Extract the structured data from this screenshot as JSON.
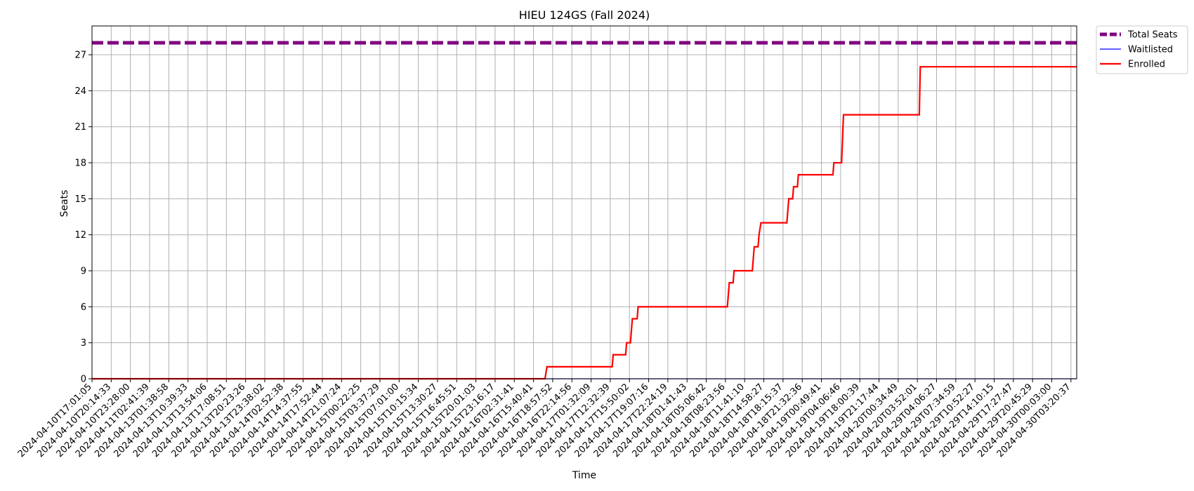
{
  "chart_data": {
    "type": "line",
    "title": "HIEU 124GS (Fall 2024)",
    "xlabel": "Time",
    "ylabel": "Seats",
    "ylim": [
      0,
      29.4
    ],
    "yticks": [
      0,
      3,
      6,
      9,
      12,
      15,
      18,
      21,
      24,
      27
    ],
    "grid": true,
    "legend_position": "outside-top-right",
    "x_tick_labels": [
      "2024-04-10T17:01:05",
      "2024-04-10T20:14:33",
      "2024-04-10T23:28:00",
      "2024-04-11T02:41:39",
      "2024-04-13T01:38:58",
      "2024-04-13T10:39:33",
      "2024-04-13T13:54:06",
      "2024-04-13T17:08:51",
      "2024-04-13T20:23:26",
      "2024-04-13T23:38:02",
      "2024-04-14T02:52:38",
      "2024-04-14T14:37:55",
      "2024-04-14T17:52:44",
      "2024-04-14T21:07:24",
      "2024-04-15T00:22:25",
      "2024-04-15T03:37:29",
      "2024-04-15T07:01:00",
      "2024-04-15T10:15:34",
      "2024-04-15T13:30:27",
      "2024-04-15T16:45:51",
      "2024-04-15T20:01:03",
      "2024-04-15T23:16:17",
      "2024-04-16T02:31:41",
      "2024-04-16T15:40:41",
      "2024-04-16T18:57:52",
      "2024-04-16T22:14:56",
      "2024-04-17T01:32:09",
      "2024-04-17T12:32:39",
      "2024-04-17T15:50:02",
      "2024-04-17T19:07:16",
      "2024-04-17T22:24:19",
      "2024-04-18T01:41:43",
      "2024-04-18T05:06:42",
      "2024-04-18T08:23:56",
      "2024-04-18T11:41:10",
      "2024-04-18T14:58:27",
      "2024-04-18T18:15:37",
      "2024-04-18T21:32:36",
      "2024-04-19T00:49:41",
      "2024-04-19T04:06:46",
      "2024-04-19T18:00:39",
      "2024-04-19T21:17:44",
      "2024-04-20T00:34:49",
      "2024-04-20T03:52:01",
      "2024-04-29T04:06:27",
      "2024-04-29T07:34:59",
      "2024-04-29T10:52:27",
      "2024-04-29T14:10:15",
      "2024-04-29T17:27:47",
      "2024-04-29T20:45:29",
      "2024-04-30T00:03:00",
      "2024-04-30T03:20:37"
    ],
    "series": [
      {
        "name": "Total Seats",
        "color": "#800080",
        "style": "dashed",
        "points": [
          [
            0,
            28
          ],
          [
            51.3,
            28
          ]
        ]
      },
      {
        "name": "Waitlisted",
        "color": "#0000ff",
        "style": "solid",
        "points": [
          [
            0,
            0
          ],
          [
            51.3,
            0
          ]
        ]
      },
      {
        "name": "Enrolled",
        "color": "#ff0000",
        "style": "solid",
        "points": [
          [
            0,
            0
          ],
          [
            23.6,
            0
          ],
          [
            23.7,
            1
          ],
          [
            27.1,
            1
          ],
          [
            27.15,
            2
          ],
          [
            27.8,
            2
          ],
          [
            27.85,
            3
          ],
          [
            28.05,
            3
          ],
          [
            28.1,
            4
          ],
          [
            28.15,
            5
          ],
          [
            28.4,
            5
          ],
          [
            28.45,
            6
          ],
          [
            33.1,
            6
          ],
          [
            33.15,
            7
          ],
          [
            33.2,
            8
          ],
          [
            33.4,
            8
          ],
          [
            33.45,
            9
          ],
          [
            34.4,
            9
          ],
          [
            34.45,
            10
          ],
          [
            34.5,
            11
          ],
          [
            34.7,
            11
          ],
          [
            34.75,
            12
          ],
          [
            34.85,
            13
          ],
          [
            36.2,
            13
          ],
          [
            36.25,
            14
          ],
          [
            36.3,
            15
          ],
          [
            36.5,
            15
          ],
          [
            36.55,
            16
          ],
          [
            36.75,
            16
          ],
          [
            36.8,
            17
          ],
          [
            38.6,
            17
          ],
          [
            38.65,
            18
          ],
          [
            39.05,
            18
          ],
          [
            39.1,
            20
          ],
          [
            39.15,
            22
          ],
          [
            43.1,
            22
          ],
          [
            43.15,
            26
          ],
          [
            51.3,
            26
          ]
        ]
      }
    ]
  }
}
